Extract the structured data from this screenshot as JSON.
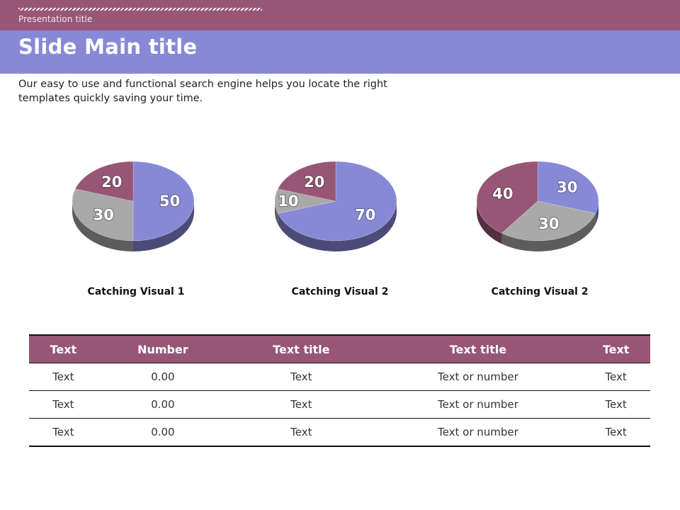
{
  "header": {
    "presentation_title": "Presentation title",
    "slide_title": "Slide Main title"
  },
  "description": "Our easy to use and functional search engine helps you locate the right templates quickly saving your time.",
  "colors": {
    "header_band": "#985676",
    "title_band": "#8789d6",
    "series_blue": "#8789d6",
    "series_gray": "#a9a9a9",
    "series_mauve": "#985676"
  },
  "chart_data": [
    {
      "type": "pie",
      "title": "Catching Visual 1",
      "slices": [
        {
          "value": 50,
          "label": "50",
          "color": "#8789d6"
        },
        {
          "value": 30,
          "label": "30",
          "color": "#a9a9a9"
        },
        {
          "value": 20,
          "label": "20",
          "color": "#985676"
        }
      ]
    },
    {
      "type": "pie",
      "title": "Catching Visual 2",
      "slices": [
        {
          "value": 70,
          "label": "70",
          "color": "#8789d6"
        },
        {
          "value": 10,
          "label": "10",
          "color": "#a9a9a9"
        },
        {
          "value": 20,
          "label": "20",
          "color": "#985676"
        }
      ]
    },
    {
      "type": "pie",
      "title": "Catching Visual 2",
      "slices": [
        {
          "value": 30,
          "label": "30",
          "color": "#8789d6"
        },
        {
          "value": 30,
          "label": "30",
          "color": "#a9a9a9"
        },
        {
          "value": 40,
          "label": "40",
          "color": "#985676"
        }
      ]
    }
  ],
  "table": {
    "headers": [
      "Text",
      "Number",
      "Text title",
      "Text title",
      "Text"
    ],
    "rows": [
      [
        "Text",
        "0.00",
        "Text",
        "Text or number",
        "Text"
      ],
      [
        "Text",
        "0.00",
        "Text",
        "Text or number",
        "Text"
      ],
      [
        "Text",
        "0.00",
        "Text",
        "Text or number",
        "Text"
      ]
    ]
  }
}
